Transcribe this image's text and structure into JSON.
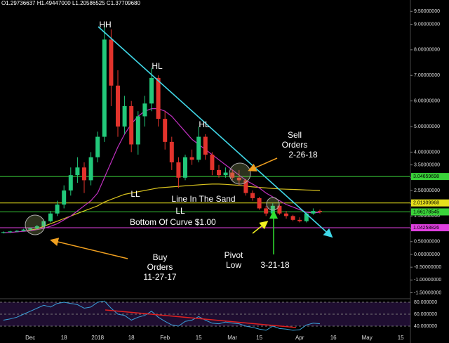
{
  "chart_data": {
    "type": "candlestick",
    "header": "O1.29736637 H1.49447000 L1.20586525 C1.37709680",
    "categories": [
      null,
      null,
      null,
      null,
      "Dec",
      null,
      null,
      null,
      null,
      "18",
      null,
      null,
      null,
      null,
      "2018",
      null,
      null,
      null,
      null,
      "18",
      null,
      null,
      null,
      null,
      "Feb",
      null,
      null,
      null,
      null,
      "15",
      null,
      null,
      null,
      null,
      "Mar",
      null,
      null,
      null,
      "15",
      null,
      null,
      null,
      null,
      null,
      "Apr",
      null,
      null,
      null,
      null,
      "16",
      null,
      null,
      null,
      null,
      "May",
      null,
      null,
      null,
      null,
      "15"
    ],
    "open": [
      0.85,
      0.87,
      0.9,
      0.92,
      0.97,
      1.02,
      1.1,
      1.3,
      1.6,
      1.95,
      2.5,
      3.1,
      3.4,
      2.9,
      3.8,
      4.6,
      8.4,
      6.6,
      5.0,
      5.8,
      4.3,
      5.4,
      5.9,
      6.9,
      5.3,
      4.4,
      3.6,
      3.0,
      3.8,
      3.7,
      4.6,
      3.9,
      3.3,
      3.1,
      3.2,
      3.0,
      2.9,
      2.4,
      2.2,
      1.8,
      1.6,
      1.9,
      1.6,
      1.5,
      1.35,
      1.3,
      1.6,
      1.7,
      null,
      null,
      null,
      null,
      null,
      null,
      null,
      null,
      null,
      null,
      null,
      null
    ],
    "high": [
      0.9,
      0.92,
      0.95,
      1.0,
      1.05,
      1.15,
      1.35,
      1.7,
      2.1,
      2.7,
      3.4,
      3.8,
      3.6,
      4.0,
      4.8,
      9.0,
      8.8,
      7.2,
      6.2,
      6.0,
      5.6,
      6.2,
      7.3,
      7.0,
      5.6,
      4.6,
      3.8,
      3.9,
      4.1,
      5.0,
      4.7,
      4.0,
      3.5,
      3.4,
      3.3,
      3.3,
      2.95,
      2.5,
      2.25,
      1.9,
      2.0,
      1.95,
      1.7,
      1.55,
      1.45,
      1.65,
      1.8,
      1.75,
      null,
      null,
      null,
      null,
      null,
      null,
      null,
      null,
      null,
      null,
      null,
      null
    ],
    "low": [
      0.82,
      0.84,
      0.87,
      0.9,
      0.93,
      0.98,
      1.05,
      1.25,
      1.5,
      1.8,
      2.3,
      2.8,
      2.4,
      2.7,
      3.6,
      4.4,
      5.8,
      4.6,
      4.7,
      4.0,
      3.9,
      5.0,
      5.6,
      5.0,
      4.1,
      3.3,
      2.6,
      2.9,
      3.5,
      3.6,
      3.7,
      3.1,
      3.0,
      3.0,
      2.9,
      2.7,
      2.3,
      2.1,
      1.75,
      1.5,
      1.55,
      1.55,
      1.4,
      1.3,
      1.25,
      1.25,
      1.55,
      1.6,
      null,
      null,
      null,
      null,
      null,
      null,
      null,
      null,
      null,
      null,
      null,
      null
    ],
    "close": [
      0.87,
      0.9,
      0.92,
      0.97,
      1.02,
      1.1,
      1.3,
      1.6,
      1.95,
      2.5,
      3.1,
      3.4,
      2.9,
      3.8,
      4.6,
      8.4,
      6.6,
      5.0,
      5.8,
      4.3,
      5.4,
      5.9,
      6.9,
      5.3,
      4.4,
      3.6,
      3.0,
      3.8,
      3.7,
      4.6,
      3.9,
      3.3,
      3.1,
      3.2,
      3.0,
      2.9,
      2.4,
      2.2,
      1.8,
      1.6,
      1.9,
      1.6,
      1.5,
      1.35,
      1.3,
      1.6,
      1.7,
      1.66,
      null,
      null,
      null,
      null,
      null,
      null,
      null,
      null,
      null,
      null,
      null,
      null
    ],
    "up_color": "#22c87a",
    "down_color": "#e2332c",
    "overlays": [
      {
        "color": "#d8c21e",
        "values": [
          null,
          null,
          null,
          0.9,
          0.95,
          1.0,
          1.1,
          1.2,
          1.3,
          1.4,
          1.5,
          1.6,
          1.7,
          1.8,
          1.9,
          2.05,
          2.15,
          2.25,
          2.35,
          2.4,
          2.45,
          2.5,
          2.55,
          2.6,
          2.62,
          2.64,
          2.66,
          2.68,
          2.7,
          2.72,
          2.74,
          2.75,
          2.75,
          2.74,
          2.72,
          2.7,
          2.67,
          2.64,
          2.62,
          2.6,
          2.58,
          2.56,
          2.55,
          2.54,
          2.53,
          2.52,
          2.51,
          2.5,
          null,
          null,
          null,
          null,
          null,
          null,
          null,
          null,
          null,
          null,
          null,
          null
        ]
      },
      {
        "color": "#c030c0",
        "values": [
          0.85,
          0.86,
          0.88,
          0.9,
          0.93,
          0.97,
          1.02,
          1.1,
          1.2,
          1.35,
          1.5,
          1.7,
          1.9,
          2.1,
          2.4,
          3.0,
          3.6,
          4.2,
          4.7,
          5.1,
          5.4,
          5.6,
          5.7,
          5.7,
          5.6,
          5.4,
          5.1,
          4.8,
          4.5,
          4.3,
          4.1,
          3.9,
          3.7,
          3.5,
          3.3,
          3.1,
          2.9,
          2.75,
          2.6,
          2.4,
          2.25,
          2.1,
          1.95,
          1.85,
          1.75,
          1.65,
          1.62,
          1.65,
          null,
          null,
          null,
          null,
          null,
          null,
          null,
          null,
          null,
          null,
          null,
          null
        ]
      }
    ],
    "ylim": [
      -1.65,
      9.81
    ],
    "yticks": [
      {
        "value": 9.5,
        "label": "9.50000000"
      },
      {
        "value": 9,
        "label": "9.00000000"
      },
      {
        "value": 8,
        "label": "8.00000000"
      },
      {
        "value": 7,
        "label": "7.00000000"
      },
      {
        "value": 6,
        "label": "6.00000000"
      },
      {
        "value": 5,
        "label": "5.00000000"
      },
      {
        "value": 4,
        "label": "4.00000000"
      },
      {
        "value": 3.5,
        "label": "3.50000000"
      },
      {
        "value": 3,
        "label": "3.00000000"
      },
      {
        "value": 2.5,
        "label": "2.50000000"
      },
      {
        "value": 2,
        "label": "2.00000000"
      },
      {
        "value": 1.5,
        "label": "1.50000000"
      },
      {
        "value": 1,
        "label": "1.00000000"
      },
      {
        "value": 0.5,
        "label": "0.50000000"
      },
      {
        "value": 0,
        "label": "0.00000000"
      },
      {
        "value": -0.5,
        "label": "-0.50000000"
      },
      {
        "value": -1,
        "label": "-1.00000000"
      },
      {
        "value": -1.5,
        "label": "-1.50000000"
      }
    ],
    "levels": [
      {
        "value": 3.04659698,
        "color": "#3ad23a"
      },
      {
        "value": 2.01309968,
        "color": "#e6e01c"
      },
      {
        "value": 1.66178545,
        "color": "#3ad23a"
      },
      {
        "value": 1.04258826,
        "color": "#e040e0"
      }
    ],
    "rsi": {
      "color": "#3aa0d8",
      "values": [
        50,
        52,
        55,
        60,
        65,
        70,
        75,
        72,
        78,
        80,
        78,
        76,
        70,
        72,
        80,
        82,
        70,
        60,
        58,
        50,
        55,
        58,
        65,
        55,
        48,
        42,
        40,
        48,
        50,
        56,
        50,
        45,
        44,
        47,
        45,
        44,
        40,
        38,
        35,
        33,
        40,
        36,
        35,
        33,
        34,
        42,
        45,
        44,
        null,
        null,
        null,
        null,
        null,
        null,
        null,
        null,
        null,
        null,
        null,
        null
      ],
      "ylim": [
        29.4,
        82.4
      ],
      "yticks": [
        {
          "value": 80,
          "label": "80.000000"
        },
        {
          "value": 60,
          "label": "60.000000"
        },
        {
          "value": 40,
          "label": "40.000000"
        }
      ]
    },
    "annotations": [
      {
        "lines": [
          "HH"
        ]
      },
      {
        "lines": [
          "HL"
        ]
      },
      {
        "lines": [
          "HL"
        ]
      },
      {
        "lines": [
          "LL"
        ]
      },
      {
        "lines": [
          "LL"
        ]
      },
      {
        "lines": [
          "Sell",
          "Orders",
          "2-26-18"
        ]
      },
      {
        "lines": [
          "Line In The Sand"
        ]
      },
      {
        "lines": [
          "Bottom Of Curve $1.00"
        ]
      },
      {
        "lines": [
          "Buy",
          "Orders",
          "11-27-17"
        ]
      },
      {
        "lines": [
          "Pivot",
          "Low"
        ]
      },
      {
        "lines": [
          "3-21-18"
        ]
      }
    ]
  }
}
